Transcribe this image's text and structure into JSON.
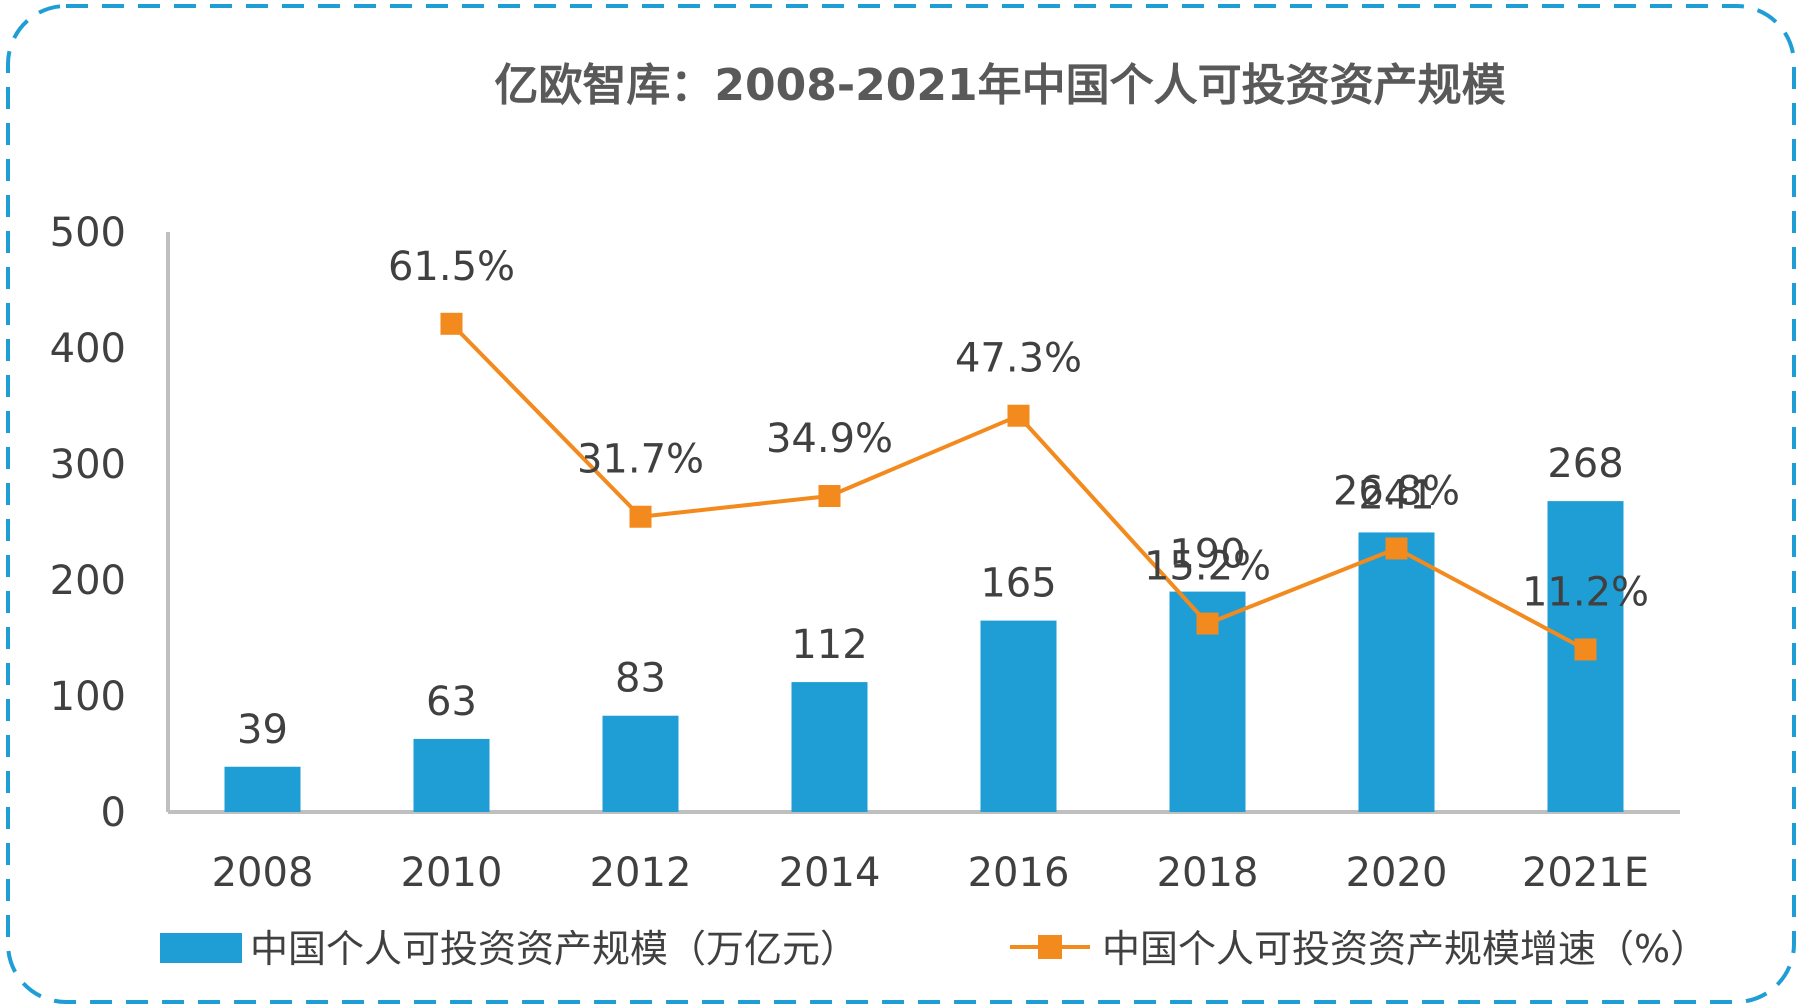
{
  "colors": {
    "bar": "#1F9ED5",
    "line": "#F28A1E",
    "border": "#1F9ED5",
    "axis": "#BFBFBF",
    "text": "#404040",
    "title": "#595959"
  },
  "chart_data": {
    "type": "bar",
    "title": "亿欧智库：2008-2021年中国个人可投资资产规模",
    "categories": [
      "2008",
      "2010",
      "2012",
      "2014",
      "2016",
      "2018",
      "2020",
      "2021E"
    ],
    "y_ticks": [
      "0",
      "100",
      "200",
      "300",
      "400",
      "500"
    ],
    "ylim": [
      0,
      500
    ],
    "grid": false,
    "legend_position": "bottom",
    "series": [
      {
        "name": "中国个人可投资资产规模（万亿元）",
        "type": "bar",
        "values": [
          39,
          63,
          83,
          112,
          165,
          190,
          241,
          268
        ],
        "labels": [
          "39",
          "63",
          "83",
          "112",
          "165",
          "190",
          "241",
          "268"
        ]
      },
      {
        "name": "中国个人可投资资产规模增速（%）",
        "type": "line",
        "marker": "square",
        "secondary_axis": true,
        "values": [
          null,
          61.5,
          31.7,
          34.9,
          47.3,
          15.2,
          26.8,
          11.2
        ],
        "labels": [
          "",
          "61.5%",
          "31.7%",
          "34.9%",
          "47.3%",
          "15.2%",
          "26.8%",
          "11.2%"
        ]
      }
    ]
  }
}
